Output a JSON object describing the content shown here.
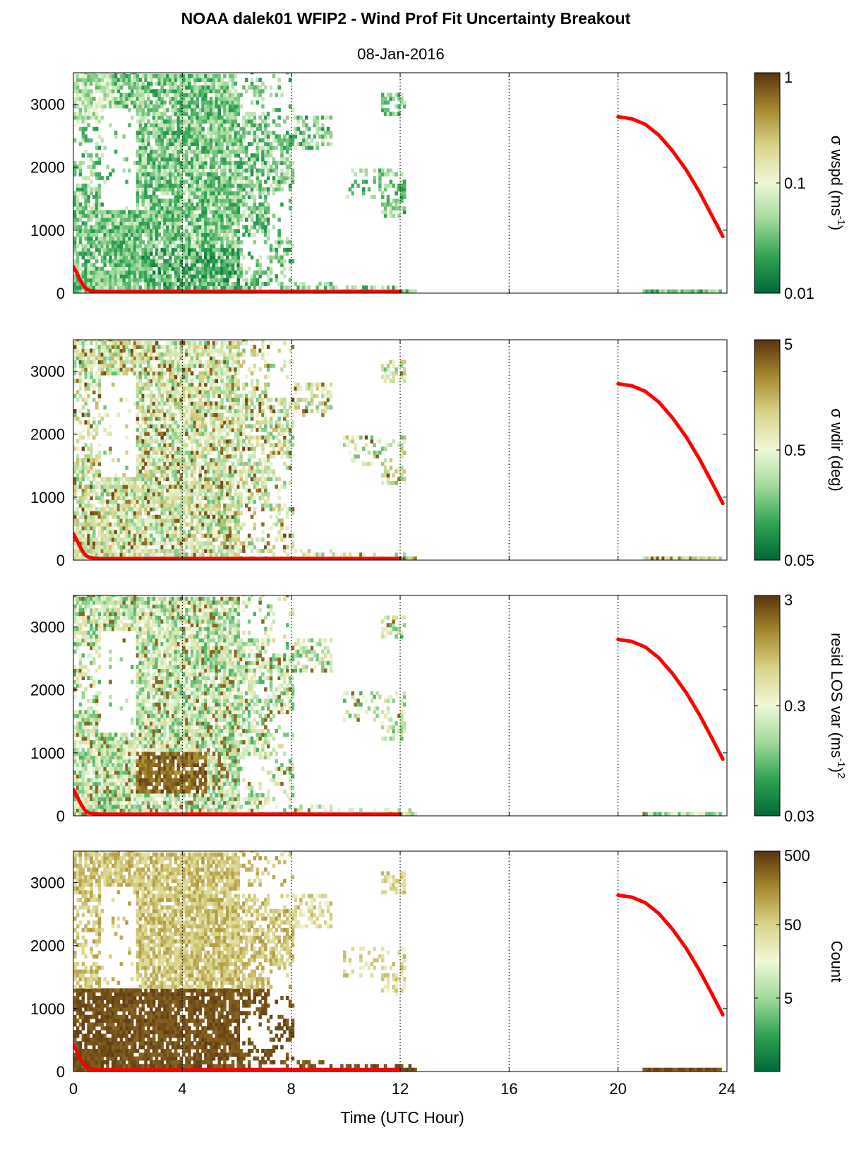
{
  "figure": {
    "title": "NOAA dalek01 WFIP2 - Wind Prof Fit Uncertainty Breakout",
    "subtitle": "08-Jan-2016",
    "xlabel": "Time (UTC Hour)"
  },
  "chart_data": [
    {
      "type": "heatmap",
      "name": "wspd-uncertainty",
      "colorbar_label": "σ wspd (ms",
      "colorbar_label_sup": "-1",
      "colorbar_label_tail": ")",
      "colorbar_ticks": [
        "1",
        "0.1",
        "0.01"
      ],
      "colorbar_range": [
        0.01,
        1
      ],
      "scale": "log",
      "xlim": [
        0,
        24
      ],
      "ylim": [
        0,
        3500
      ],
      "x_ticks": [
        "0",
        "4",
        "8",
        "12",
        "16",
        "20",
        "24"
      ],
      "y_ticks": [
        "0",
        "1000",
        "2000",
        "3000"
      ],
      "vertical_reference_lines": [
        4,
        8,
        12,
        16,
        20
      ],
      "colormap": [
        "#006837",
        "#31a354",
        "#a1d99b",
        "#f0f7d8",
        "#d9d48a",
        "#a68a2e",
        "#5a3210"
      ]
    },
    {
      "type": "heatmap",
      "name": "wdir-uncertainty",
      "colorbar_label": "σ wdir (deg)",
      "colorbar_ticks": [
        "5",
        "0.5",
        "0.05"
      ],
      "colorbar_range": [
        0.05,
        5
      ],
      "scale": "log",
      "xlim": [
        0,
        24
      ],
      "ylim": [
        0,
        3500
      ],
      "x_ticks": [
        "0",
        "4",
        "8",
        "12",
        "16",
        "20",
        "24"
      ],
      "y_ticks": [
        "0",
        "1000",
        "2000",
        "3000"
      ],
      "vertical_reference_lines": [
        4,
        8,
        12,
        16,
        20
      ]
    },
    {
      "type": "heatmap",
      "name": "residual-los-variance",
      "colorbar_label": "resid LOS var (ms",
      "colorbar_label_sup": "-1",
      "colorbar_label_tail": ")",
      "colorbar_label_sup2": "2",
      "colorbar_ticks": [
        "3",
        "0.3",
        "0.03"
      ],
      "colorbar_range": [
        0.03,
        3
      ],
      "scale": "log",
      "xlim": [
        0,
        24
      ],
      "ylim": [
        0,
        3500
      ],
      "x_ticks": [
        "0",
        "4",
        "8",
        "12",
        "16",
        "20",
        "24"
      ],
      "y_ticks": [
        "0",
        "1000",
        "2000",
        "3000"
      ],
      "vertical_reference_lines": [
        4,
        8,
        12,
        16,
        20
      ]
    },
    {
      "type": "heatmap",
      "name": "count",
      "colorbar_label": "Count",
      "colorbar_ticks": [
        "500",
        "50",
        "5"
      ],
      "colorbar_range": [
        0.5,
        500
      ],
      "scale": "log",
      "xlim": [
        0,
        24
      ],
      "ylim": [
        0,
        3500
      ],
      "x_ticks": [
        "0",
        "4",
        "8",
        "12",
        "16",
        "20",
        "24"
      ],
      "y_ticks": [
        "0",
        "1000",
        "2000",
        "3000"
      ],
      "vertical_reference_lines": [
        4,
        8,
        12,
        16,
        20
      ]
    }
  ],
  "overlay_line": {
    "color": "#ff0000",
    "segments": [
      {
        "x": [
          0.0,
          0.1,
          0.2,
          0.3,
          0.4,
          0.5,
          0.6,
          0.8,
          1.0,
          2,
          4,
          6,
          8,
          10,
          12.0
        ],
        "y": [
          420,
          340,
          250,
          170,
          100,
          60,
          40,
          30,
          25,
          25,
          25,
          25,
          25,
          25,
          25
        ]
      },
      {
        "x": [
          20.0,
          20.5,
          21.0,
          21.5,
          22.0,
          22.5,
          23.0,
          23.5,
          23.85
        ],
        "y": [
          2800,
          2770,
          2680,
          2510,
          2260,
          1960,
          1600,
          1190,
          900
        ]
      }
    ]
  }
}
